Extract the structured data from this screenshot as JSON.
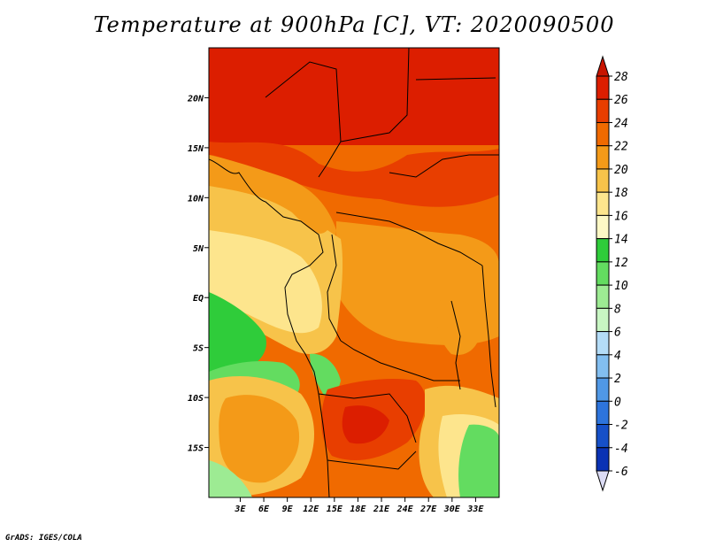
{
  "title": "Temperature at 900hPa [C], VT: 2020090500",
  "credit": "GrADS: IGES/COLA",
  "map": {
    "lon_range": [
      -1,
      36
    ],
    "lat_range": [
      -20,
      25
    ],
    "x_ticks": [
      "3E",
      "6E",
      "9E",
      "12E",
      "15E",
      "18E",
      "21E",
      "24E",
      "27E",
      "30E",
      "33E"
    ],
    "x_tick_values": [
      3,
      6,
      9,
      12,
      15,
      18,
      21,
      24,
      27,
      30,
      33
    ],
    "y_ticks": [
      "15S",
      "10S",
      "5S",
      "EQ",
      "5N",
      "10N",
      "15N",
      "20N"
    ],
    "y_tick_values": [
      -15,
      -10,
      -5,
      0,
      5,
      10,
      15,
      20
    ]
  },
  "colorbar": {
    "labels": [
      "28",
      "26",
      "24",
      "22",
      "20",
      "18",
      "16",
      "14",
      "12",
      "10",
      "8",
      "6",
      "4",
      "2",
      "0",
      "-2",
      "-4",
      "-6"
    ],
    "colors": [
      "#dc1e00",
      "#e83e00",
      "#f06a00",
      "#f49a18",
      "#f7c34a",
      "#fde58d",
      "#fdf8c5",
      "#2fcc3a",
      "#63dc60",
      "#9deb93",
      "#c8f6c3",
      "#b4dcf7",
      "#82bef0",
      "#5098e6",
      "#2d74dc",
      "#1650c8",
      "#0a32b4",
      "#042890",
      "#030e6c"
    ],
    "over_color": "#c81400",
    "under_color": "#dcdcf5"
  },
  "chart_data": {
    "type": "heatmap",
    "title": "Temperature at 900hPa [C], VT: 2020090500",
    "units": "C",
    "x_axis": "longitude",
    "y_axis": "latitude",
    "xlim": [
      -1,
      36
    ],
    "ylim": [
      -20,
      25
    ],
    "levels": [
      -6,
      -4,
      -2,
      0,
      2,
      4,
      6,
      8,
      10,
      12,
      14,
      16,
      18,
      20,
      22,
      24,
      26,
      28
    ]
  }
}
